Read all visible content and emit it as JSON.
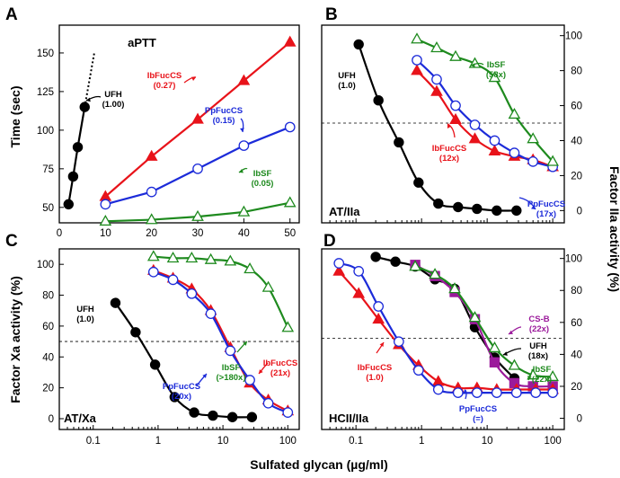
{
  "figure": {
    "x_axis_label": "Sulfated glycan (µg/ml)",
    "y_label_left_top": "Time (sec)",
    "y_label_left_bottom": "Factor Xa activity (%)",
    "y_label_right": "Factor IIa activity (%)",
    "colors": {
      "UFH": "#000000",
      "IbFucCS": "#e8131a",
      "PpFucCS": "#1c2bd9",
      "IbSF": "#1e8a1e",
      "CS-B": "#9b1a9b"
    }
  },
  "chart_data": [
    {
      "id": "A",
      "type": "line",
      "letter": "A",
      "title": "aPTT",
      "ylabel": "Time (sec)",
      "xlim": [
        0,
        52
      ],
      "ylim": [
        40,
        168
      ],
      "xticks": [
        0,
        10,
        20,
        30,
        40,
        50
      ],
      "yticks": [
        50,
        75,
        100,
        125,
        150
      ],
      "series": [
        {
          "name": "UFH",
          "color": "UFH",
          "marker": "circle-filled",
          "x": [
            2,
            3,
            4,
            5.5
          ],
          "y": [
            52,
            70,
            89,
            115
          ]
        },
        {
          "name": "IbFucCS",
          "color": "IbFucCS",
          "marker": "triangle-filled",
          "x": [
            10,
            20,
            30,
            40,
            50
          ],
          "y": [
            57,
            83,
            107,
            132,
            157
          ]
        },
        {
          "name": "PpFucCS",
          "color": "PpFucCS",
          "marker": "circle-open",
          "x": [
            10,
            20,
            30,
            40,
            50
          ],
          "y": [
            52,
            60,
            75,
            90,
            102
          ]
        },
        {
          "name": "IbSF",
          "color": "IbSF",
          "marker": "triangle-open",
          "x": [
            10,
            20,
            30,
            40,
            50
          ],
          "y": [
            41,
            42,
            44,
            47,
            53
          ]
        }
      ],
      "annotations": [
        {
          "label": "UFH",
          "value": "(1.00)",
          "color": "UFH"
        },
        {
          "label": "IbFucCS",
          "value": "(0.27)",
          "color": "IbFucCS"
        },
        {
          "label": "PpFucCS",
          "value": "(0.15)",
          "color": "PpFucCS"
        },
        {
          "label": "IbSF",
          "value": "(0.05)",
          "color": "IbSF"
        }
      ]
    },
    {
      "id": "B",
      "type": "line",
      "letter": "B",
      "title": "AT/IIa",
      "xscale": "log",
      "xlim": [
        0.03,
        150
      ],
      "ylim": [
        -7,
        106
      ],
      "yticks": [
        0,
        20,
        40,
        60,
        80,
        100
      ],
      "yaxis": "right",
      "reference_line": 50,
      "series": [
        {
          "name": "UFH",
          "color": "UFH",
          "marker": "circle-filled",
          "x": [
            0.11,
            0.22,
            0.45,
            0.9,
            1.8,
            3.6,
            7,
            14,
            28
          ],
          "y": [
            95,
            63,
            39,
            16,
            4,
            2,
            1,
            0,
            0
          ]
        },
        {
          "name": "IbFucCS",
          "color": "IbFucCS",
          "marker": "triangle-filled",
          "x": [
            0.85,
            1.7,
            3.3,
            6.5,
            13,
            26,
            50,
            100
          ],
          "y": [
            80,
            68,
            52,
            41,
            34,
            31,
            29,
            25
          ]
        },
        {
          "name": "PpFucCS",
          "color": "PpFucCS",
          "marker": "circle-open",
          "x": [
            0.85,
            1.7,
            3.3,
            6.5,
            13,
            26,
            50,
            100
          ],
          "y": [
            86,
            75,
            60,
            49,
            40,
            33,
            28,
            25
          ]
        },
        {
          "name": "IbSF",
          "color": "IbSF",
          "marker": "triangle-open",
          "x": [
            0.85,
            1.7,
            3.3,
            6.5,
            13,
            26,
            50,
            100
          ],
          "y": [
            98,
            93,
            88,
            84,
            76,
            55,
            41,
            28
          ]
        }
      ],
      "annotations": [
        {
          "label": "UFH",
          "value": "(1.0)",
          "color": "UFH"
        },
        {
          "label": "IbSF",
          "value": "(58x)",
          "color": "IbSF"
        },
        {
          "label": "IbFucCS",
          "value": "(12x)",
          "color": "IbFucCS"
        },
        {
          "label": "PpFucCS",
          "value": "(17x)",
          "color": "PpFucCS"
        }
      ]
    },
    {
      "id": "C",
      "type": "line",
      "letter": "C",
      "title": "AT/Xa",
      "xscale": "log",
      "xlim": [
        0.03,
        150
      ],
      "ylim": [
        -7,
        110
      ],
      "yticks": [
        0,
        20,
        40,
        60,
        80,
        100
      ],
      "xticks": [
        0.1,
        1,
        10,
        100
      ],
      "xticklabels": [
        "0.1",
        "1",
        "10",
        "100"
      ],
      "reference_line": 50,
      "series": [
        {
          "name": "UFH",
          "color": "UFH",
          "marker": "circle-filled",
          "x": [
            0.22,
            0.45,
            0.9,
            1.8,
            3.6,
            7,
            14,
            28
          ],
          "y": [
            75,
            56,
            35,
            14,
            4,
            2,
            1,
            1
          ]
        },
        {
          "name": "IbFucCS",
          "color": "IbFucCS",
          "marker": "triangle-filled",
          "x": [
            0.85,
            1.7,
            3.3,
            6.5,
            13,
            26,
            50,
            100
          ],
          "y": [
            96,
            91,
            84,
            70,
            46,
            23,
            12,
            5
          ]
        },
        {
          "name": "PpFucCS",
          "color": "PpFucCS",
          "marker": "circle-open",
          "x": [
            0.85,
            1.7,
            3.3,
            6.5,
            13,
            26,
            50,
            100
          ],
          "y": [
            95,
            90,
            81,
            68,
            44,
            25,
            10,
            4
          ]
        },
        {
          "name": "IbSF",
          "color": "IbSF",
          "marker": "triangle-open",
          "x": [
            0.85,
            1.7,
            3.3,
            6.5,
            13,
            26,
            50,
            100
          ],
          "y": [
            105,
            104,
            104,
            103,
            102,
            97,
            85,
            59
          ]
        }
      ],
      "annotations": [
        {
          "label": "UFH",
          "value": "(1.0)",
          "color": "UFH"
        },
        {
          "label": "IbSF",
          "value": "(>180x)",
          "color": "IbSF"
        },
        {
          "label": "IbFucCS",
          "value": "(21x)",
          "color": "IbFucCS"
        },
        {
          "label": "PpFucCS",
          "value": "(20x)",
          "color": "PpFucCS"
        }
      ]
    },
    {
      "id": "D",
      "type": "line",
      "letter": "D",
      "title": "HCII/IIa",
      "xscale": "log",
      "xlim": [
        0.03,
        150
      ],
      "ylim": [
        -7,
        106
      ],
      "yticks": [
        0,
        20,
        40,
        60,
        80,
        100
      ],
      "xticks": [
        0.1,
        1,
        10,
        100
      ],
      "xticklabels": [
        "0.1",
        "1",
        "10",
        "100"
      ],
      "yaxis": "right",
      "reference_line": 50,
      "series": [
        {
          "name": "UFH",
          "color": "UFH",
          "marker": "circle-filled",
          "x": [
            0.2,
            0.4,
            0.8,
            1.6,
            3.2,
            6.5,
            13,
            26
          ],
          "y": [
            101,
            98,
            95,
            87,
            81,
            57,
            38,
            25
          ]
        },
        {
          "name": "CS-B",
          "color": "CS-B",
          "marker": "square-filled",
          "x": [
            0.8,
            1.6,
            3.2,
            6.5,
            13,
            26,
            50,
            100
          ],
          "y": [
            96,
            89,
            79,
            62,
            35,
            22,
            20,
            20
          ]
        },
        {
          "name": "IbSF",
          "color": "IbSF",
          "marker": "triangle-open",
          "x": [
            0.8,
            1.6,
            3.2,
            6.5,
            13,
            26,
            50,
            100
          ],
          "y": [
            95,
            90,
            81,
            63,
            44,
            33,
            27,
            26
          ]
        },
        {
          "name": "IbFucCS",
          "color": "IbFucCS",
          "marker": "triangle-filled",
          "x": [
            0.055,
            0.11,
            0.22,
            0.45,
            0.9,
            1.8,
            3.6,
            7,
            14,
            28,
            55,
            100
          ],
          "y": [
            92,
            78,
            62,
            46,
            33,
            23,
            19,
            19,
            18,
            18,
            18,
            18
          ]
        },
        {
          "name": "PpFucCS",
          "color": "PpFucCS",
          "marker": "circle-open",
          "x": [
            0.055,
            0.11,
            0.22,
            0.45,
            0.9,
            1.8,
            3.6,
            7,
            14,
            28,
            55,
            100
          ],
          "y": [
            97,
            92,
            70,
            48,
            30,
            18,
            16,
            16,
            16,
            16,
            16,
            16
          ]
        }
      ],
      "annotations": [
        {
          "label": "UFH",
          "value": "(18x)",
          "color": "UFH"
        },
        {
          "label": "CS-B",
          "value": "(22x)",
          "color": "CS-B"
        },
        {
          "label": "IbSF",
          "value": "(22x)",
          "color": "IbSF"
        },
        {
          "label": "IbFucCS",
          "value": "(1.0)",
          "color": "IbFucCS"
        },
        {
          "label": "PpFucCS",
          "value": "(=)",
          "color": "PpFucCS"
        }
      ]
    }
  ]
}
